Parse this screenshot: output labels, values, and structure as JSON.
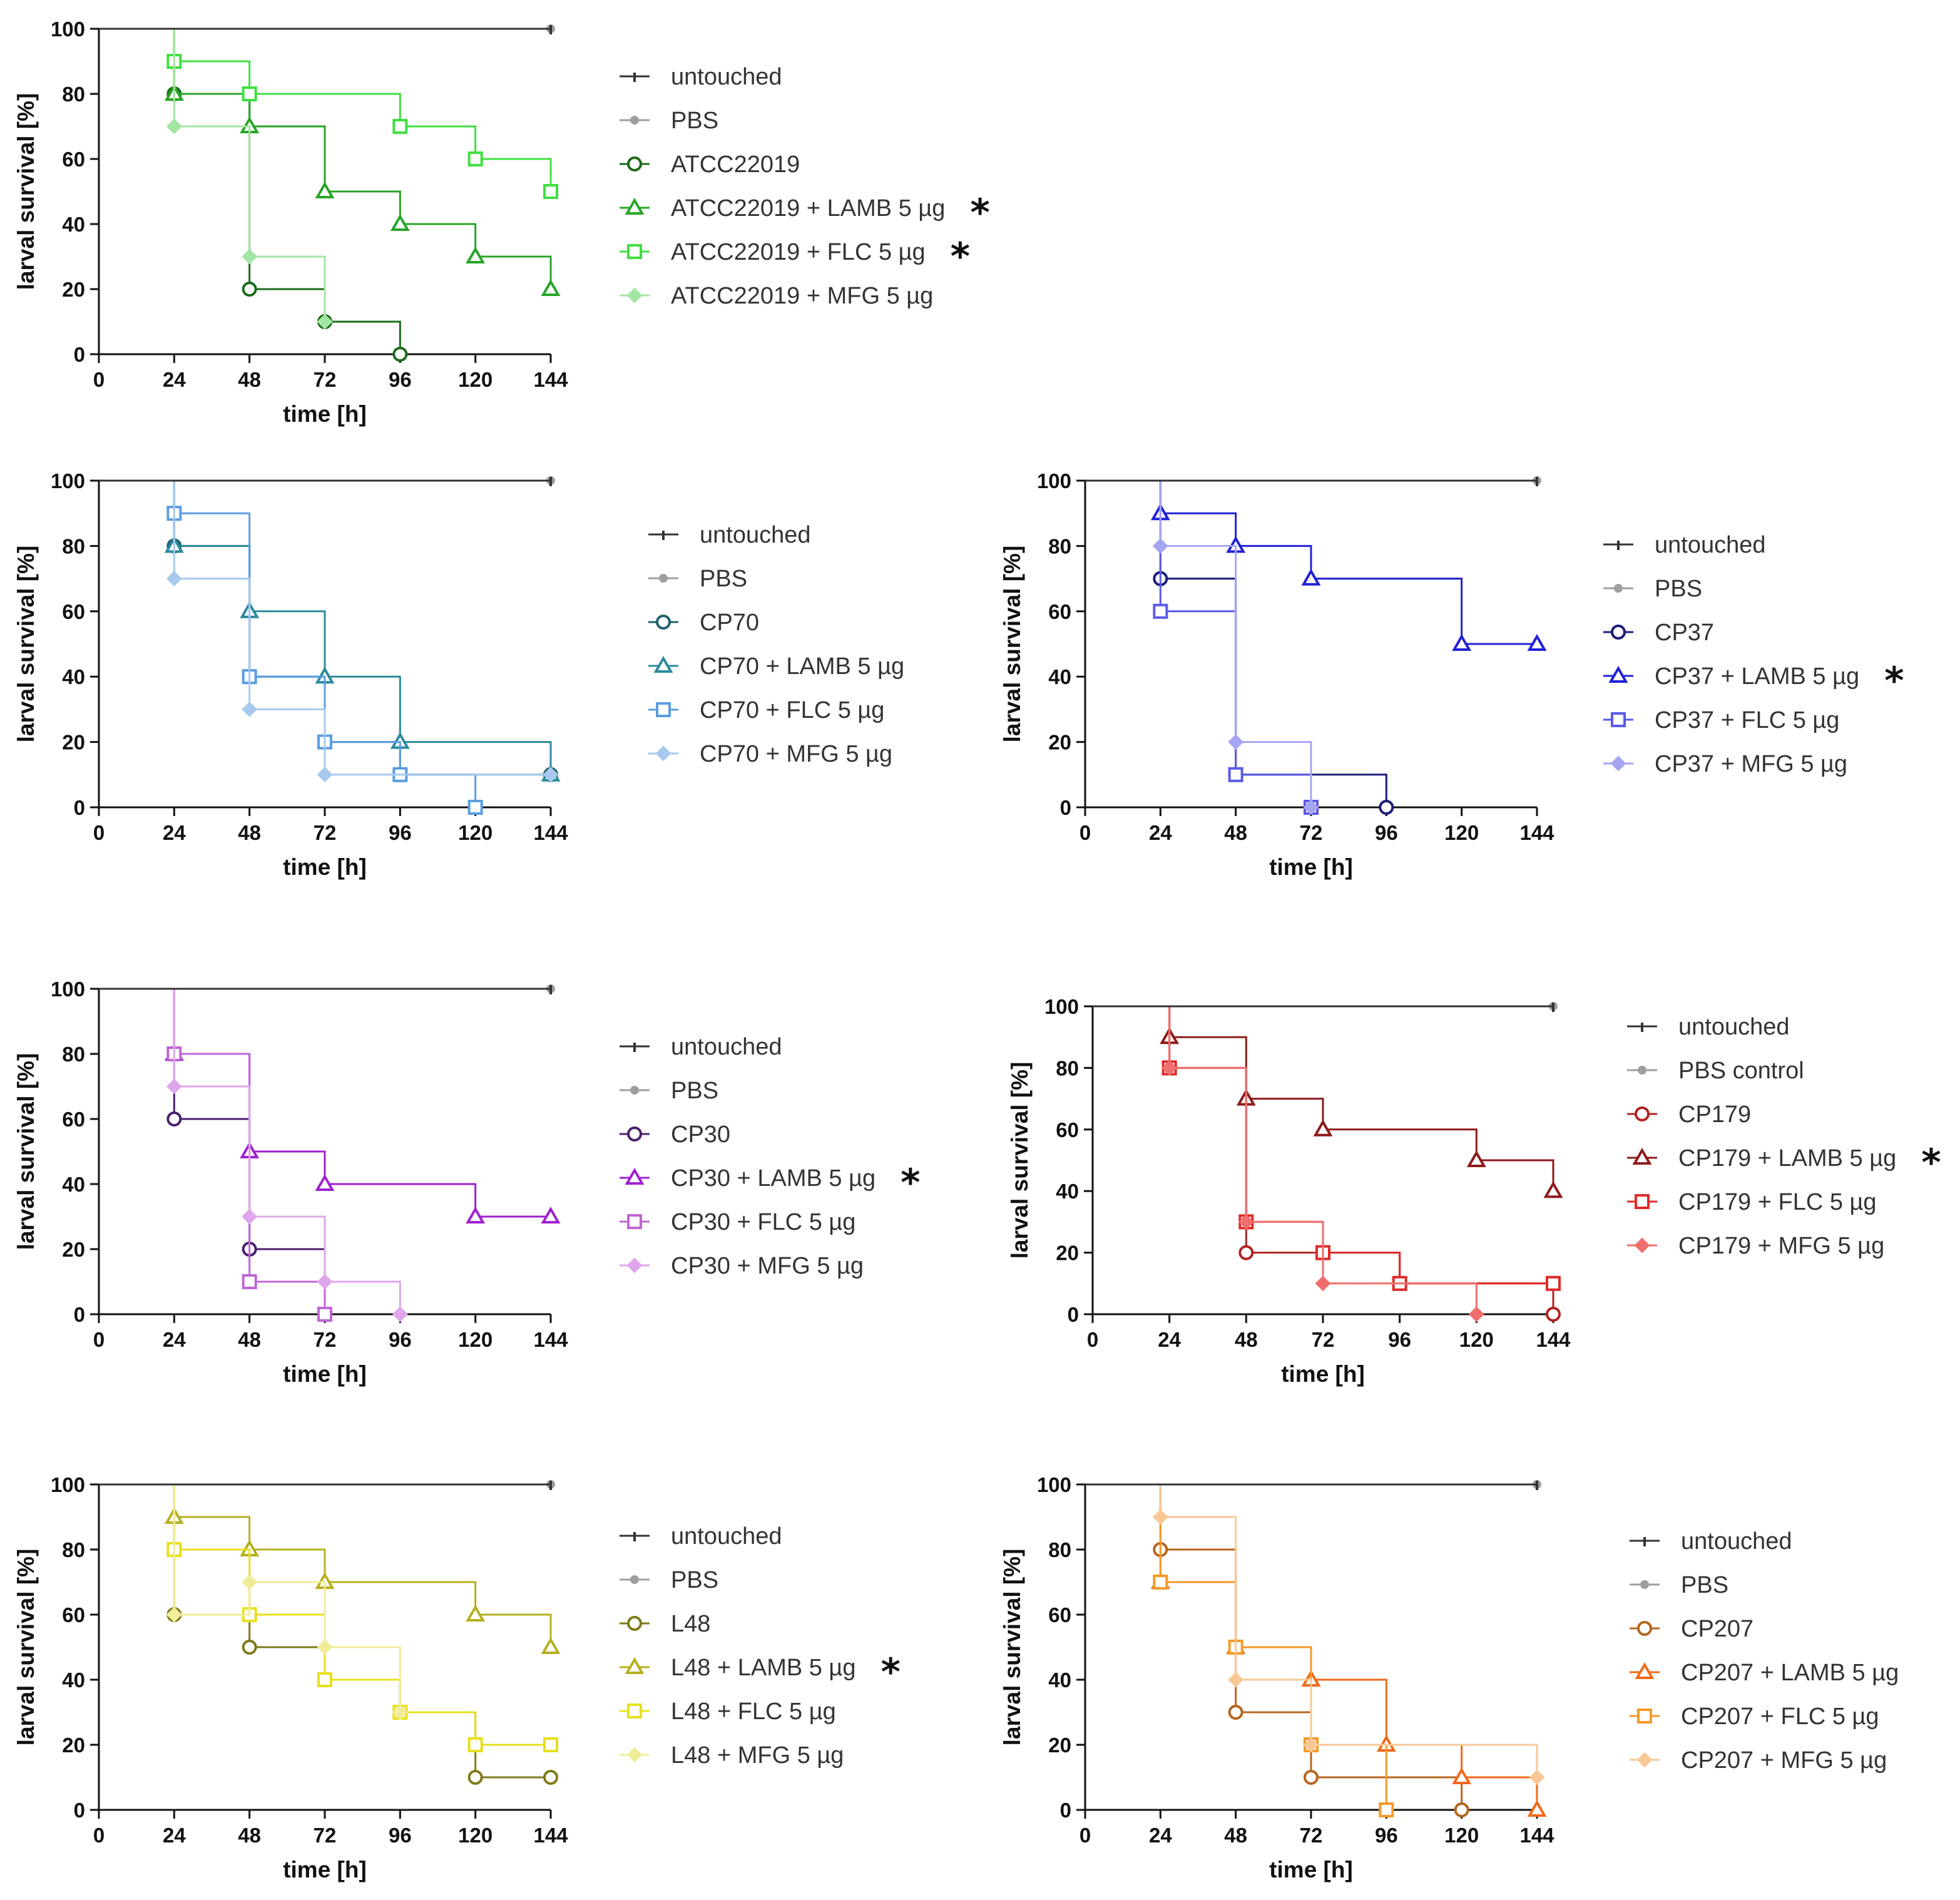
{
  "chart_data": [
    {
      "type": "line",
      "step": true,
      "strain": "ATCC22019",
      "xlabel": "time [h]",
      "ylabel": "larval survival [%]",
      "x_ticks": [
        0,
        24,
        48,
        72,
        96,
        120,
        144
      ],
      "y_ticks": [
        0,
        20,
        40,
        60,
        80,
        100
      ],
      "xlim": [
        0,
        144
      ],
      "ylim": [
        0,
        100
      ],
      "series": [
        {
          "name": "untouched",
          "marker": "tick",
          "color": "#333333",
          "significant": false,
          "x": [
            0,
            144
          ],
          "y": [
            100,
            100
          ]
        },
        {
          "name": "PBS",
          "marker": "dot",
          "color": "#9e9e9e",
          "significant": false,
          "x": [
            0,
            144
          ],
          "y": [
            100,
            100
          ]
        },
        {
          "name": "ATCC22019",
          "marker": "circle",
          "color": "#1b6b1b",
          "significant": false,
          "x": [
            0,
            24,
            48,
            72,
            96
          ],
          "y": [
            100,
            80,
            20,
            10,
            0
          ]
        },
        {
          "name": "ATCC22019 + LAMB 5 µg",
          "marker": "triangle",
          "color": "#27a527",
          "significant": true,
          "x": [
            0,
            24,
            48,
            72,
            96,
            120,
            144
          ],
          "y": [
            100,
            80,
            70,
            50,
            40,
            30,
            20
          ]
        },
        {
          "name": "ATCC22019 + FLC 5 µg",
          "marker": "square",
          "color": "#3fe03f",
          "significant": true,
          "x": [
            0,
            24,
            48,
            96,
            120,
            144
          ],
          "y": [
            100,
            90,
            80,
            70,
            60,
            50
          ]
        },
        {
          "name": "ATCC22019 + MFG 5 µg",
          "marker": "diamond",
          "color": "#a3e6a3",
          "significant": false,
          "x": [
            0,
            24,
            48,
            72
          ],
          "y": [
            100,
            70,
            30,
            10
          ]
        }
      ]
    },
    {
      "type": "line",
      "step": true,
      "strain": "CP70",
      "xlabel": "time [h]",
      "ylabel": "larval survival [%]",
      "x_ticks": [
        0,
        24,
        48,
        72,
        96,
        120,
        144
      ],
      "y_ticks": [
        0,
        20,
        40,
        60,
        80,
        100
      ],
      "xlim": [
        0,
        144
      ],
      "ylim": [
        0,
        100
      ],
      "series": [
        {
          "name": "untouched",
          "marker": "tick",
          "color": "#333333",
          "significant": false,
          "x": [
            0,
            144
          ],
          "y": [
            100,
            100
          ]
        },
        {
          "name": "PBS",
          "marker": "dot",
          "color": "#9e9e9e",
          "significant": false,
          "x": [
            0,
            144
          ],
          "y": [
            100,
            100
          ]
        },
        {
          "name": "CP70",
          "marker": "circle",
          "color": "#1f5f6e",
          "significant": false,
          "x": [
            0,
            24,
            48,
            72,
            96,
            144
          ],
          "y": [
            100,
            80,
            40,
            20,
            10,
            10
          ]
        },
        {
          "name": "CP70 + LAMB 5 µg",
          "marker": "triangle",
          "color": "#2b8a9c",
          "significant": false,
          "x": [
            0,
            24,
            48,
            72,
            96,
            144
          ],
          "y": [
            100,
            80,
            60,
            40,
            20,
            10
          ]
        },
        {
          "name": "CP70 + FLC 5 µg",
          "marker": "square",
          "color": "#5a9ee0",
          "significant": false,
          "x": [
            0,
            24,
            48,
            72,
            96,
            120
          ],
          "y": [
            100,
            90,
            40,
            20,
            10,
            0
          ]
        },
        {
          "name": "CP70 + MFG 5 µg",
          "marker": "diamond",
          "color": "#a7c9ee",
          "significant": false,
          "x": [
            0,
            24,
            48,
            72,
            144
          ],
          "y": [
            100,
            70,
            30,
            10,
            10
          ]
        }
      ]
    },
    {
      "type": "line",
      "step": true,
      "strain": "CP37",
      "xlabel": "time [h]",
      "ylabel": "larval survival [%]",
      "x_ticks": [
        0,
        24,
        48,
        72,
        96,
        120,
        144
      ],
      "y_ticks": [
        0,
        20,
        40,
        60,
        80,
        100
      ],
      "xlim": [
        0,
        144
      ],
      "ylim": [
        0,
        100
      ],
      "series": [
        {
          "name": "untouched",
          "marker": "tick",
          "color": "#333333",
          "significant": false,
          "x": [
            0,
            144
          ],
          "y": [
            100,
            100
          ]
        },
        {
          "name": "PBS",
          "marker": "dot",
          "color": "#9e9e9e",
          "significant": false,
          "x": [
            0,
            144
          ],
          "y": [
            100,
            100
          ]
        },
        {
          "name": "CP37",
          "marker": "circle",
          "color": "#1c1c7a",
          "significant": false,
          "x": [
            0,
            24,
            48,
            96
          ],
          "y": [
            100,
            70,
            10,
            0
          ]
        },
        {
          "name": "CP37 + LAMB 5 µg",
          "marker": "triangle",
          "color": "#2020d8",
          "significant": true,
          "x": [
            0,
            24,
            48,
            72,
            120,
            144
          ],
          "y": [
            100,
            90,
            80,
            70,
            50,
            50
          ]
        },
        {
          "name": "CP37 + FLC 5 µg",
          "marker": "square",
          "color": "#5a5ae8",
          "significant": false,
          "x": [
            0,
            24,
            48,
            72
          ],
          "y": [
            100,
            60,
            10,
            0
          ]
        },
        {
          "name": "CP37 + MFG 5 µg",
          "marker": "diamond",
          "color": "#a5a5f2",
          "significant": false,
          "x": [
            0,
            24,
            48,
            72
          ],
          "y": [
            100,
            80,
            20,
            0
          ]
        }
      ]
    },
    {
      "type": "line",
      "step": true,
      "strain": "CP30",
      "xlabel": "time [h]",
      "ylabel": "larval survival [%]",
      "x_ticks": [
        0,
        24,
        48,
        72,
        96,
        120,
        144
      ],
      "y_ticks": [
        0,
        20,
        40,
        60,
        80,
        100
      ],
      "xlim": [
        0,
        144
      ],
      "ylim": [
        0,
        100
      ],
      "series": [
        {
          "name": "untouched",
          "marker": "tick",
          "color": "#333333",
          "significant": false,
          "x": [
            0,
            144
          ],
          "y": [
            100,
            100
          ]
        },
        {
          "name": "PBS",
          "marker": "dot",
          "color": "#9e9e9e",
          "significant": false,
          "x": [
            0,
            144
          ],
          "y": [
            100,
            100
          ]
        },
        {
          "name": "CP30",
          "marker": "circle",
          "color": "#4a1f6e",
          "significant": false,
          "x": [
            0,
            24,
            48,
            72
          ],
          "y": [
            100,
            60,
            20,
            0
          ]
        },
        {
          "name": "CP30 + LAMB 5 µg",
          "marker": "triangle",
          "color": "#a020d0",
          "significant": true,
          "x": [
            0,
            24,
            48,
            72,
            120,
            144
          ],
          "y": [
            100,
            80,
            50,
            40,
            30,
            30
          ]
        },
        {
          "name": "CP30 + FLC 5 µg",
          "marker": "square",
          "color": "#c066d6",
          "significant": false,
          "x": [
            0,
            24,
            48,
            72
          ],
          "y": [
            100,
            80,
            10,
            0
          ]
        },
        {
          "name": "CP30 + MFG 5 µg",
          "marker": "diamond",
          "color": "#e0a6ec",
          "significant": false,
          "x": [
            0,
            24,
            48,
            72,
            96
          ],
          "y": [
            100,
            70,
            30,
            10,
            0
          ]
        }
      ]
    },
    {
      "type": "line",
      "step": true,
      "strain": "CP179",
      "xlabel": "time [h]",
      "ylabel": "larval survival [%]",
      "x_ticks": [
        0,
        24,
        48,
        72,
        96,
        120,
        144
      ],
      "y_ticks": [
        0,
        20,
        40,
        60,
        80,
        100
      ],
      "xlim": [
        0,
        144
      ],
      "ylim": [
        0,
        100
      ],
      "series": [
        {
          "name": "untouched",
          "marker": "tick",
          "color": "#333333",
          "significant": false,
          "x": [
            0,
            144
          ],
          "y": [
            100,
            100
          ]
        },
        {
          "name": "PBS control",
          "marker": "dot",
          "color": "#9e9e9e",
          "significant": false,
          "x": [
            0,
            144
          ],
          "y": [
            100,
            100
          ]
        },
        {
          "name": "CP179",
          "marker": "circle",
          "color": "#b22222",
          "significant": false,
          "x": [
            0,
            24,
            48,
            96,
            144
          ],
          "y": [
            100,
            80,
            20,
            10,
            0
          ]
        },
        {
          "name": "CP179 + LAMB 5 µg",
          "marker": "triangle",
          "color": "#8e1a1a",
          "significant": true,
          "x": [
            0,
            24,
            48,
            72,
            120,
            144
          ],
          "y": [
            100,
            90,
            70,
            60,
            50,
            40
          ]
        },
        {
          "name": "CP179 + FLC 5 µg",
          "marker": "square",
          "color": "#e02a2a",
          "significant": false,
          "x": [
            0,
            24,
            48,
            72,
            96,
            144
          ],
          "y": [
            100,
            80,
            30,
            20,
            10,
            10
          ]
        },
        {
          "name": "CP179 + MFG 5 µg",
          "marker": "diamond",
          "color": "#ef6e6e",
          "significant": false,
          "x": [
            0,
            24,
            48,
            72,
            120
          ],
          "y": [
            100,
            80,
            30,
            10,
            0
          ]
        }
      ]
    },
    {
      "type": "line",
      "step": true,
      "strain": "L48",
      "xlabel": "time [h]",
      "ylabel": "larval survival [%]",
      "x_ticks": [
        0,
        24,
        48,
        72,
        96,
        120,
        144
      ],
      "y_ticks": [
        0,
        20,
        40,
        60,
        80,
        100
      ],
      "xlim": [
        0,
        144
      ],
      "ylim": [
        0,
        100
      ],
      "series": [
        {
          "name": "untouched",
          "marker": "tick",
          "color": "#333333",
          "significant": false,
          "x": [
            0,
            144
          ],
          "y": [
            100,
            100
          ]
        },
        {
          "name": "PBS",
          "marker": "dot",
          "color": "#9e9e9e",
          "significant": false,
          "x": [
            0,
            144
          ],
          "y": [
            100,
            100
          ]
        },
        {
          "name": "L48",
          "marker": "circle",
          "color": "#7f7a1a",
          "significant": false,
          "x": [
            0,
            24,
            48,
            72,
            96,
            120,
            144
          ],
          "y": [
            100,
            60,
            50,
            40,
            30,
            10,
            10
          ]
        },
        {
          "name": "L48 + LAMB 5 µg",
          "marker": "triangle",
          "color": "#b5b01f",
          "significant": true,
          "x": [
            0,
            24,
            48,
            72,
            120,
            144
          ],
          "y": [
            100,
            90,
            80,
            70,
            60,
            50
          ]
        },
        {
          "name": "L48 + FLC 5 µg",
          "marker": "square",
          "color": "#e8e01c",
          "significant": false,
          "x": [
            0,
            24,
            48,
            72,
            96,
            120,
            144
          ],
          "y": [
            100,
            80,
            60,
            40,
            30,
            20,
            20
          ]
        },
        {
          "name": "L48 + MFG 5 µg",
          "marker": "diamond",
          "color": "#f0ec9a",
          "significant": false,
          "x": [
            0,
            24,
            48,
            72,
            96
          ],
          "y": [
            100,
            60,
            70,
            50,
            30
          ]
        }
      ]
    },
    {
      "type": "line",
      "step": true,
      "strain": "CP207",
      "xlabel": "time [h]",
      "ylabel": "larval survival [%]",
      "x_ticks": [
        0,
        24,
        48,
        72,
        96,
        120,
        144
      ],
      "y_ticks": [
        0,
        20,
        40,
        60,
        80,
        100
      ],
      "xlim": [
        0,
        144
      ],
      "ylim": [
        0,
        100
      ],
      "series": [
        {
          "name": "untouched",
          "marker": "tick",
          "color": "#333333",
          "significant": false,
          "x": [
            0,
            144
          ],
          "y": [
            100,
            100
          ]
        },
        {
          "name": "PBS",
          "marker": "dot",
          "color": "#9e9e9e",
          "significant": false,
          "x": [
            0,
            144
          ],
          "y": [
            100,
            100
          ]
        },
        {
          "name": "CP207",
          "marker": "circle",
          "color": "#b5651d",
          "significant": false,
          "x": [
            0,
            24,
            48,
            72,
            120
          ],
          "y": [
            100,
            80,
            30,
            10,
            0
          ]
        },
        {
          "name": "CP207 + LAMB 5 µg",
          "marker": "triangle",
          "color": "#f06a1a",
          "significant": false,
          "x": [
            0,
            24,
            48,
            72,
            96,
            120,
            144
          ],
          "y": [
            100,
            70,
            50,
            40,
            20,
            10,
            0
          ]
        },
        {
          "name": "CP207 + FLC 5 µg",
          "marker": "square",
          "color": "#f59a2a",
          "significant": false,
          "x": [
            0,
            24,
            48,
            72,
            96
          ],
          "y": [
            100,
            70,
            50,
            20,
            0
          ]
        },
        {
          "name": "CP207 + MFG 5 µg",
          "marker": "diamond",
          "color": "#f8c896",
          "significant": false,
          "x": [
            0,
            24,
            48,
            72,
            144
          ],
          "y": [
            100,
            90,
            40,
            20,
            10
          ]
        }
      ]
    }
  ]
}
